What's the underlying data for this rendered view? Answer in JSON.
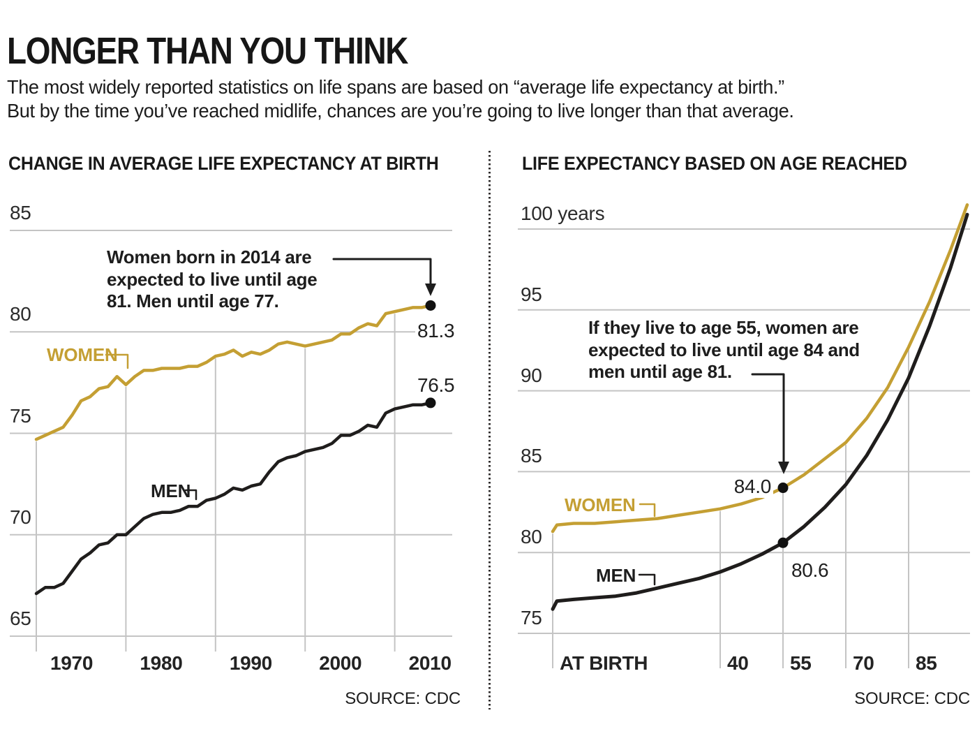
{
  "header": {
    "title": "LONGER THAN YOU THINK",
    "subtitle_lines": [
      "The most widely reported statistics on life spans are based on “average life expectancy at birth.”",
      "But by the time you’ve reached midlife, chances are you’re going to live longer than that average."
    ]
  },
  "colors": {
    "gold": "#c49f33",
    "ink": "#1f1d1c",
    "grid": "#c4c4c4",
    "dot": "#111111"
  },
  "chart_data": [
    {
      "type": "line",
      "title": "CHANGE IN AVERAGE LIFE EXPECTANCY AT BIRTH",
      "xlabel": "",
      "ylabel": "",
      "x": [
        1970,
        1971,
        1972,
        1973,
        1974,
        1975,
        1976,
        1977,
        1978,
        1979,
        1980,
        1981,
        1982,
        1983,
        1984,
        1985,
        1986,
        1987,
        1988,
        1989,
        1990,
        1991,
        1992,
        1993,
        1994,
        1995,
        1996,
        1997,
        1998,
        1999,
        2000,
        2001,
        2002,
        2003,
        2004,
        2005,
        2006,
        2007,
        2008,
        2009,
        2010,
        2011,
        2012,
        2013,
        2014
      ],
      "series": [
        {
          "name": "WOMEN",
          "values": [
            74.7,
            74.9,
            75.1,
            75.3,
            75.9,
            76.6,
            76.8,
            77.2,
            77.3,
            77.8,
            77.4,
            77.8,
            78.1,
            78.1,
            78.2,
            78.2,
            78.2,
            78.3,
            78.3,
            78.5,
            78.8,
            78.9,
            79.1,
            78.8,
            79.0,
            78.9,
            79.1,
            79.4,
            79.5,
            79.4,
            79.3,
            79.4,
            79.5,
            79.6,
            79.9,
            79.9,
            80.2,
            80.4,
            80.3,
            80.9,
            81.0,
            81.1,
            81.2,
            81.2,
            81.3
          ]
        },
        {
          "name": "MEN",
          "values": [
            67.1,
            67.4,
            67.4,
            67.6,
            68.2,
            68.8,
            69.1,
            69.5,
            69.6,
            70.0,
            70.0,
            70.4,
            70.8,
            71.0,
            71.1,
            71.1,
            71.2,
            71.4,
            71.4,
            71.7,
            71.8,
            72.0,
            72.3,
            72.2,
            72.4,
            72.5,
            73.1,
            73.6,
            73.8,
            73.9,
            74.1,
            74.2,
            74.3,
            74.5,
            74.9,
            74.9,
            75.1,
            75.4,
            75.3,
            76.0,
            76.2,
            76.3,
            76.4,
            76.4,
            76.5
          ]
        }
      ],
      "ylim": [
        65,
        85
      ],
      "yticks": [
        "85",
        "80",
        "75",
        "70",
        "65"
      ],
      "ytick_values": [
        85,
        80,
        75,
        70,
        65
      ],
      "xticks": [
        "1970",
        "1980",
        "1990",
        "2000",
        "2010"
      ],
      "xtick_values": [
        1970,
        1980,
        1990,
        2000,
        2010
      ],
      "grid": true,
      "end_labels": {
        "women": "81.3",
        "men": "76.5"
      },
      "annotation": {
        "lines": [
          "Women born in 2014 are",
          "expected to live until age",
          "81. Men until age 77."
        ]
      },
      "source": "SOURCE: CDC"
    },
    {
      "type": "line",
      "title": "LIFE EXPECTANCY BASED ON AGE REACHED",
      "xlabel": "",
      "ylabel": "",
      "x": [
        0,
        1,
        5,
        10,
        15,
        20,
        25,
        30,
        35,
        40,
        45,
        50,
        55,
        60,
        65,
        70,
        75,
        80,
        85,
        90,
        95,
        99
      ],
      "series": [
        {
          "name": "WOMEN",
          "values": [
            81.3,
            81.7,
            81.8,
            81.8,
            81.9,
            82.0,
            82.1,
            82.3,
            82.5,
            82.7,
            83.0,
            83.4,
            84.0,
            84.8,
            85.8,
            86.8,
            88.3,
            90.2,
            92.7,
            95.5,
            98.7,
            101.5
          ]
        },
        {
          "name": "MEN",
          "values": [
            76.5,
            77.0,
            77.1,
            77.2,
            77.3,
            77.5,
            77.8,
            78.1,
            78.4,
            78.8,
            79.3,
            79.9,
            80.6,
            81.6,
            82.8,
            84.2,
            86.0,
            88.2,
            90.8,
            94.0,
            97.6,
            100.9
          ]
        }
      ],
      "ylim": [
        75,
        100
      ],
      "yticks": [
        "100 years",
        "95",
        "90",
        "85",
        "80",
        "75"
      ],
      "ytick_values": [
        100,
        95,
        90,
        85,
        80,
        75
      ],
      "xticks": [
        "AT BIRTH",
        "40",
        "55",
        "70",
        "85"
      ],
      "xtick_values": [
        0,
        40,
        55,
        70,
        85
      ],
      "grid": true,
      "highlight": {
        "age": 55,
        "women_label": "84.0",
        "men_label": "80.6"
      },
      "annotation": {
        "lines": [
          "If they live to age 55, women are",
          "expected to live until age 84 and",
          "men until age 81."
        ]
      },
      "source": "SOURCE: CDC"
    }
  ]
}
